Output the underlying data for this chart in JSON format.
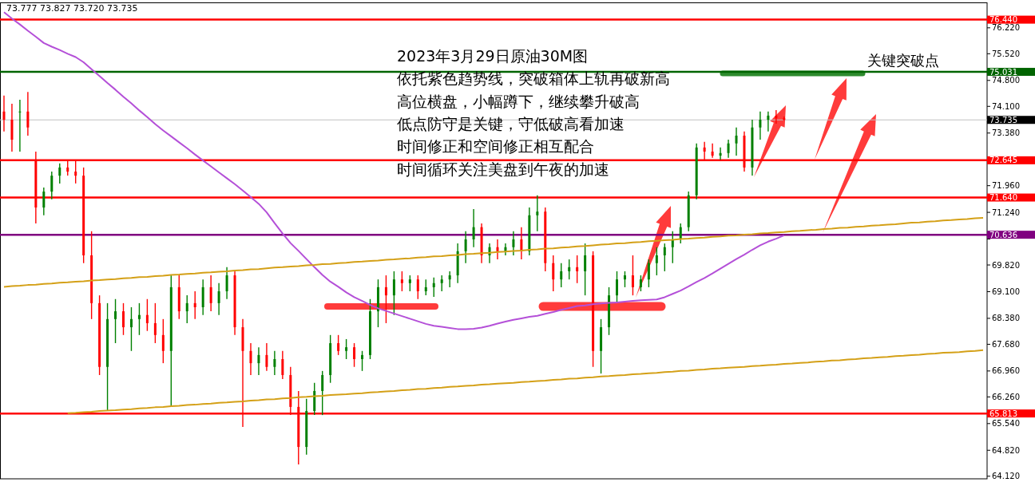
{
  "chart_data": {
    "type": "candlestick",
    "title": "2023年3月29日原油30M图",
    "annotations": [
      "依托紫色趋势线，突破箱体上轨再破新高",
      "高位横盘，小幅蹲下，继续攀升破高",
      "低点防守是关键，守低破高看加速",
      "时间修正和空间修正相互配合",
      "时间循环关注美盘到午夜的加速",
      "关键突破点",
      "73.777 73.827 73.720 73.735"
    ],
    "categories": [
      null,
      null,
      null,
      null,
      null,
      null,
      null,
      null,
      null,
      null,
      null,
      null,
      null,
      null,
      null,
      null,
      null,
      null,
      null,
      null,
      null,
      null,
      null,
      null,
      null,
      null,
      null,
      null,
      null,
      null,
      null,
      null,
      null,
      null,
      null,
      null,
      null,
      null,
      null,
      null,
      null,
      null,
      null,
      null,
      null,
      null,
      null,
      null,
      null,
      null,
      null,
      null,
      null,
      null,
      null,
      null,
      null,
      null,
      null,
      null,
      null,
      null,
      null,
      null,
      null,
      null,
      null,
      null,
      null,
      null,
      null,
      null,
      null,
      null,
      null,
      null,
      null,
      null,
      null,
      null,
      null,
      null,
      null,
      null,
      null,
      null,
      null,
      null,
      null,
      null,
      null,
      null,
      null,
      null,
      null,
      null,
      null,
      null,
      null,
      null,
      null,
      null,
      null,
      null,
      null,
      null,
      null,
      null,
      null,
      null,
      null,
      null,
      null,
      null,
      null,
      null,
      null,
      null,
      null,
      null,
      null,
      null,
      null,
      null
    ],
    "ylim": [
      64.05,
      76.97
    ],
    "yticks": [
      {
        "value": 76.22,
        "label": "76.220"
      },
      {
        "value": 75.52,
        "label": "75.520"
      },
      {
        "value": 74.8,
        "label": "74.800"
      },
      {
        "value": 74.1,
        "label": "74.100"
      },
      {
        "value": 73.38,
        "label": "73.380"
      },
      {
        "value": 72.66,
        "label": null
      },
      {
        "value": 71.96,
        "label": "71.960"
      },
      {
        "value": 71.24,
        "label": "71.240"
      },
      {
        "value": 70.52,
        "label": null
      },
      {
        "value": 69.82,
        "label": "69.820"
      },
      {
        "value": 69.1,
        "label": "69.100"
      },
      {
        "value": 68.38,
        "label": "68.380"
      },
      {
        "value": 67.68,
        "label": "67.680"
      },
      {
        "value": 66.96,
        "label": "66.960"
      },
      {
        "value": 66.26,
        "label": "66.260"
      },
      {
        "value": 65.54,
        "label": "65.540"
      },
      {
        "value": 64.82,
        "label": "64.820"
      },
      {
        "value": 64.12,
        "label": "64.120"
      }
    ],
    "tick_labels": "y",
    "ref_lines": [
      {
        "axis": "y",
        "value": 76.44,
        "label": "76.440",
        "color": "#ff0000"
      },
      {
        "axis": "y",
        "value": 75.031,
        "label": "75.031",
        "color": "#006400"
      },
      {
        "axis": "y",
        "value": 73.735,
        "label": "73.735",
        "color": "#c0c0c0"
      },
      {
        "axis": "y",
        "value": 72.645,
        "label": "72.645",
        "color": "#ff0000"
      },
      {
        "axis": "y",
        "value": 71.64,
        "label": "71.640",
        "color": "#ff0000"
      },
      {
        "axis": "y",
        "value": 70.636,
        "label": "70.636",
        "color": "#800080"
      },
      {
        "axis": "y",
        "value": 65.813,
        "label": "65.813",
        "color": "#ff0000"
      }
    ],
    "series": [
      {
        "ohlc": [
          [
            73.96,
            74.39,
            73.42,
            73.74
          ],
          [
            73.74,
            74.17,
            72.88,
            73.2
          ],
          [
            73.96,
            74.28,
            72.88,
            73.96
          ],
          [
            73.96,
            74.49,
            73.31,
            73.53
          ],
          [
            72.66,
            72.88,
            70.94,
            71.37
          ],
          [
            71.37,
            71.91,
            71.16,
            71.8
          ],
          [
            71.8,
            72.34,
            71.59,
            72.23
          ],
          [
            72.23,
            72.56,
            72.02,
            72.45
          ],
          [
            72.45,
            72.66,
            72.23,
            72.34
          ],
          [
            72.34,
            72.66,
            72.02,
            72.23
          ],
          [
            72.23,
            72.45,
            69.87,
            70.08
          ],
          [
            70.08,
            70.73,
            68.36,
            68.79
          ],
          [
            68.79,
            69.0,
            66.85,
            67.07
          ],
          [
            67.07,
            68.79,
            65.88,
            68.36
          ],
          [
            68.36,
            68.9,
            67.71,
            68.57
          ],
          [
            68.57,
            68.79,
            67.93,
            68.14
          ],
          [
            68.14,
            68.68,
            67.5,
            68.36
          ],
          [
            68.36,
            68.79,
            67.93,
            68.47
          ],
          [
            68.47,
            68.9,
            68.04,
            68.25
          ],
          [
            68.25,
            68.79,
            67.71,
            67.93
          ],
          [
            67.93,
            68.36,
            67.17,
            67.5
          ],
          [
            67.5,
            69.54,
            65.99,
            69.22
          ],
          [
            69.22,
            69.54,
            68.36,
            68.57
          ],
          [
            68.57,
            69.0,
            68.25,
            68.79
          ],
          [
            68.79,
            69.11,
            68.36,
            68.68
          ],
          [
            68.68,
            69.43,
            68.47,
            69.22
          ],
          [
            69.22,
            69.54,
            68.57,
            68.79
          ],
          [
            68.79,
            69.33,
            68.47,
            69.11
          ],
          [
            69.11,
            69.76,
            68.9,
            69.54
          ],
          [
            69.54,
            69.65,
            67.93,
            68.14
          ],
          [
            68.14,
            68.36,
            65.45,
            67.5
          ],
          [
            67.5,
            67.71,
            66.85,
            67.17
          ],
          [
            67.17,
            67.6,
            66.85,
            67.39
          ],
          [
            67.39,
            67.71,
            66.96,
            67.07
          ],
          [
            67.07,
            67.5,
            66.85,
            67.28
          ],
          [
            67.28,
            67.5,
            66.74,
            66.85
          ],
          [
            66.85,
            67.07,
            65.77,
            65.99
          ],
          [
            65.99,
            66.42,
            64.44,
            64.91
          ],
          [
            64.91,
            66.21,
            64.7,
            65.88
          ],
          [
            65.88,
            66.64,
            65.77,
            66.42
          ],
          [
            66.42,
            66.96,
            65.77,
            66.85
          ],
          [
            66.85,
            67.93,
            66.64,
            67.71
          ],
          [
            67.71,
            67.93,
            67.39,
            67.5
          ],
          [
            67.5,
            67.82,
            67.28,
            67.6
          ],
          [
            67.6,
            67.71,
            67.07,
            67.28
          ],
          [
            67.28,
            67.5,
            66.96,
            67.39
          ],
          [
            67.39,
            68.9,
            67.28,
            68.57
          ],
          [
            68.57,
            69.43,
            68.14,
            69.22
          ],
          [
            69.22,
            69.54,
            68.25,
            69.0
          ],
          [
            69.0,
            69.65,
            68.47,
            69.43
          ],
          [
            69.43,
            69.65,
            69.11,
            69.33
          ],
          [
            69.33,
            69.54,
            69.11,
            69.43
          ],
          [
            69.43,
            69.54,
            68.9,
            69.11
          ],
          [
            69.11,
            69.43,
            69.0,
            69.22
          ],
          [
            69.22,
            69.48,
            68.96,
            69.33
          ],
          [
            69.33,
            69.54,
            69.11,
            69.43
          ],
          [
            69.43,
            69.65,
            69.22,
            69.54
          ],
          [
            69.54,
            70.4,
            69.33,
            70.19
          ],
          [
            70.19,
            70.73,
            69.87,
            70.51
          ],
          [
            70.51,
            71.33,
            70.3,
            70.84
          ],
          [
            70.84,
            70.94,
            69.87,
            70.08
          ],
          [
            70.08,
            70.4,
            69.87,
            70.3
          ],
          [
            70.3,
            70.51,
            69.97,
            70.19
          ],
          [
            70.19,
            70.4,
            70.08,
            70.3
          ],
          [
            70.3,
            70.73,
            70.08,
            70.51
          ],
          [
            70.51,
            70.84,
            69.97,
            70.19
          ],
          [
            70.19,
            71.37,
            70.08,
            71.16
          ],
          [
            71.16,
            71.7,
            70.73,
            71.26
          ],
          [
            71.26,
            71.37,
            69.65,
            69.87
          ],
          [
            69.87,
            70.08,
            69.11,
            69.43
          ],
          [
            69.43,
            69.87,
            69.22,
            69.65
          ],
          [
            69.65,
            69.97,
            69.43,
            69.76
          ],
          [
            69.76,
            70.08,
            69.33,
            69.65
          ],
          [
            69.65,
            70.4,
            69.0,
            70.08
          ],
          [
            70.08,
            70.19,
            67.07,
            67.5
          ],
          [
            67.5,
            68.36,
            66.89,
            68.14
          ],
          [
            68.14,
            69.22,
            67.93,
            69.0
          ],
          [
            69.0,
            69.65,
            68.79,
            69.43
          ],
          [
            69.43,
            69.65,
            69.22,
            69.54
          ],
          [
            69.54,
            70.08,
            69.0,
            69.22
          ],
          [
            69.22,
            69.54,
            69.11,
            69.43
          ],
          [
            69.43,
            69.97,
            69.22,
            69.87
          ],
          [
            69.87,
            70.3,
            69.54,
            70.08
          ],
          [
            70.08,
            70.4,
            69.65,
            70.3
          ],
          [
            70.3,
            70.73,
            69.87,
            70.51
          ],
          [
            70.51,
            70.94,
            70.4,
            70.84
          ],
          [
            70.84,
            71.8,
            70.73,
            71.7
          ],
          [
            71.7,
            73.1,
            71.59,
            72.99
          ],
          [
            72.99,
            73.14,
            72.66,
            72.88
          ],
          [
            72.88,
            73.1,
            72.71,
            72.77
          ],
          [
            72.77,
            72.99,
            72.66,
            72.84
          ],
          [
            72.84,
            73.2,
            72.71,
            73.1
          ],
          [
            73.1,
            73.53,
            72.77,
            73.31
          ],
          [
            73.31,
            73.42,
            72.34,
            72.45
          ],
          [
            72.45,
            73.74,
            72.23,
            73.53
          ],
          [
            73.53,
            73.96,
            73.2,
            73.74
          ],
          [
            73.74,
            73.96,
            73.42,
            73.85
          ],
          [
            73.85,
            74.0,
            73.63,
            73.78
          ],
          [
            73.777,
            73.827,
            73.72,
            73.735
          ],
          null,
          null,
          null,
          null,
          null,
          null,
          null,
          null,
          null,
          null,
          null,
          null,
          null,
          null,
          null,
          null,
          null,
          null,
          null,
          null,
          null,
          null,
          null,
          null,
          null
        ],
        "colors": [
          "#ff0000",
          "#ff0000",
          "#008000",
          "#ff0000",
          "#ff0000",
          "#008000",
          "#008000",
          "#008000",
          "#ff0000",
          "#ff0000",
          "#ff0000",
          "#ff0000",
          "#ff0000",
          "#008000",
          "#008000",
          "#ff0000",
          "#008000",
          "#008000",
          "#ff0000",
          "#ff0000",
          "#ff0000",
          "#008000",
          "#ff0000",
          "#008000",
          "#ff0000",
          "#008000",
          "#ff0000",
          "#008000",
          "#008000",
          "#ff0000",
          "#ff0000",
          "#ff0000",
          "#008000",
          "#ff0000",
          "#008000",
          "#ff0000",
          "#ff0000",
          "#ff0000",
          "#008000",
          "#008000",
          "#008000",
          "#008000",
          "#ff0000",
          "#008000",
          "#ff0000",
          "#008000",
          "#008000",
          "#008000",
          "#ff0000",
          "#008000",
          "#ff0000",
          "#008000",
          "#ff0000",
          "#008000",
          "#008000",
          "#008000",
          "#008000",
          "#008000",
          "#008000",
          "#008000",
          "#ff0000",
          "#008000",
          "#ff0000",
          "#008000",
          "#008000",
          "#ff0000",
          "#008000",
          "#008000",
          "#ff0000",
          "#ff0000",
          "#008000",
          "#008000",
          "#ff0000",
          "#008000",
          "#ff0000",
          "#008000",
          "#008000",
          "#008000",
          "#008000",
          "#ff0000",
          "#008000",
          "#008000",
          "#008000",
          "#008000",
          "#008000",
          "#008000",
          "#008000",
          "#008000",
          "#ff0000",
          "#ff0000",
          "#008000",
          "#008000",
          "#008000",
          "#ff0000",
          "#008000",
          "#008000",
          "#008000",
          "#ff0000",
          "#ff0000",
          null,
          null,
          null,
          null,
          null,
          null,
          null,
          null,
          null,
          null,
          null,
          null,
          null,
          null,
          null,
          null,
          null,
          null,
          null,
          null,
          null,
          null,
          null,
          null,
          null
        ]
      },
      {
        "type": "line",
        "color": "#b450d8",
        "values": [
          76.64,
          76.47,
          76.31,
          76.14,
          75.98,
          75.81,
          75.71,
          75.62,
          75.52,
          75.43,
          75.29,
          75.1,
          74.92,
          74.73,
          74.55,
          74.36,
          74.18,
          73.99,
          73.81,
          73.62,
          73.45,
          73.29,
          73.13,
          72.97,
          72.8,
          72.64,
          72.48,
          72.32,
          72.16,
          72.0,
          71.83,
          71.65,
          71.47,
          71.24,
          70.95,
          70.67,
          70.41,
          70.2,
          69.98,
          69.76,
          69.55,
          69.37,
          69.23,
          69.08,
          68.95,
          68.85,
          68.74,
          68.65,
          68.58,
          68.51,
          68.44,
          68.37,
          68.3,
          68.23,
          68.18,
          68.15,
          68.12,
          68.09,
          68.09,
          68.1,
          68.13,
          68.18,
          68.24,
          68.29,
          68.34,
          68.38,
          68.42,
          68.45,
          68.5,
          68.55,
          68.61,
          68.66,
          68.71,
          68.73,
          68.76,
          68.78,
          68.8,
          68.81,
          68.83,
          68.85,
          68.87,
          68.88,
          68.89,
          68.95,
          69.04,
          69.13,
          69.24,
          69.36,
          69.47,
          69.59,
          69.72,
          69.85,
          69.98,
          70.1,
          70.23,
          70.35,
          70.45,
          70.53,
          70.62,
          null,
          null,
          null,
          null,
          null,
          null,
          null,
          null,
          null,
          null,
          null,
          null,
          null,
          null,
          null,
          null,
          null,
          null,
          null,
          null,
          null,
          null,
          null,
          null,
          null
        ]
      },
      {
        "type": "line",
        "color": "#d4a017",
        "values": [
          69.23,
          69.25,
          69.26,
          69.28,
          69.29,
          69.31,
          69.32,
          69.34,
          69.35,
          69.37,
          69.38,
          69.4,
          69.41,
          69.43,
          69.44,
          69.46,
          69.47,
          69.49,
          69.5,
          69.52,
          69.53,
          69.55,
          69.56,
          69.58,
          69.59,
          69.61,
          69.62,
          69.64,
          69.65,
          69.67,
          69.68,
          69.7,
          69.71,
          69.73,
          69.75,
          69.76,
          69.78,
          69.79,
          69.81,
          69.82,
          69.84,
          69.85,
          69.87,
          69.88,
          69.9,
          69.91,
          69.93,
          69.94,
          69.96,
          69.97,
          69.99,
          70.0,
          70.02,
          70.03,
          70.05,
          70.06,
          70.08,
          70.09,
          70.11,
          70.12,
          70.14,
          70.15,
          70.17,
          70.18,
          70.2,
          70.21,
          70.23,
          70.24,
          70.26,
          70.27,
          70.29,
          70.3,
          70.32,
          70.33,
          70.35,
          70.37,
          70.38,
          70.4,
          70.41,
          70.43,
          70.44,
          70.46,
          70.47,
          70.49,
          70.5,
          70.52,
          70.53,
          70.55,
          70.56,
          70.58,
          70.59,
          70.61,
          70.62,
          70.64,
          70.65,
          70.67,
          70.68,
          70.7,
          70.71,
          70.73,
          70.74,
          70.76,
          70.77,
          70.79,
          70.8,
          70.82,
          70.83,
          70.85,
          70.86,
          70.88,
          70.89,
          70.91,
          70.92,
          70.94,
          70.96,
          70.97,
          70.99,
          71.0,
          71.02,
          71.03,
          71.05,
          71.06,
          71.08,
          71.09
        ]
      },
      {
        "type": "line",
        "color": "#d4a017",
        "values": [
          null,
          null,
          null,
          null,
          null,
          null,
          null,
          null,
          65.82,
          65.83,
          65.85,
          65.86,
          65.88,
          65.89,
          65.9,
          65.92,
          65.93,
          65.95,
          65.96,
          65.98,
          65.99,
          66.01,
          66.02,
          66.04,
          66.05,
          66.07,
          66.08,
          66.1,
          66.11,
          66.13,
          66.14,
          66.16,
          66.17,
          66.19,
          66.2,
          66.22,
          66.23,
          66.25,
          66.26,
          66.28,
          66.29,
          66.31,
          66.32,
          66.33,
          66.35,
          66.36,
          66.38,
          66.39,
          66.41,
          66.42,
          66.44,
          66.45,
          66.47,
          66.48,
          66.5,
          66.51,
          66.53,
          66.54,
          66.56,
          66.57,
          66.59,
          66.6,
          66.62,
          66.63,
          66.64,
          66.66,
          66.67,
          66.69,
          66.7,
          66.72,
          66.73,
          66.75,
          66.76,
          66.78,
          66.79,
          66.81,
          66.82,
          66.84,
          66.85,
          66.87,
          66.88,
          66.9,
          66.91,
          66.93,
          66.94,
          66.96,
          66.97,
          66.99,
          67.0,
          67.02,
          67.03,
          67.05,
          67.06,
          67.07,
          67.09,
          67.1,
          67.12,
          67.13,
          67.15,
          67.16,
          67.18,
          67.19,
          67.21,
          67.22,
          67.24,
          67.25,
          67.27,
          67.28,
          67.3,
          67.31,
          67.33,
          67.34,
          67.36,
          67.37,
          67.39,
          67.4,
          67.42,
          67.43,
          67.45,
          67.46,
          67.47,
          67.49,
          67.5,
          67.52
        ]
      }
    ]
  }
}
